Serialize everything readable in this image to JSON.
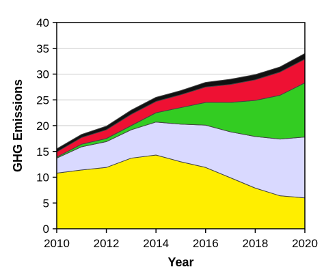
{
  "chart_data": {
    "type": "area",
    "stacked": true,
    "title": "",
    "xlabel": "Year",
    "ylabel": "GHG Emissions",
    "x": [
      2010,
      2011,
      2012,
      2013,
      2014,
      2015,
      2016,
      2017,
      2018,
      2019,
      2020
    ],
    "xlim": [
      2010,
      2020
    ],
    "ylim": [
      0,
      40
    ],
    "xticks": [
      "2010",
      "2012",
      "2014",
      "2016",
      "2018",
      "2020"
    ],
    "yticks": [
      "0",
      "5",
      "10",
      "15",
      "20",
      "25",
      "30",
      "35",
      "40"
    ],
    "grid": "horizontal",
    "legend": "none",
    "series": [
      {
        "color": "#ffee00",
        "values": [
          10.8,
          11.4,
          11.9,
          13.7,
          14.3,
          13.0,
          11.9,
          9.9,
          7.9,
          6.4,
          6.0
        ]
      },
      {
        "color": "#d9d9ff",
        "values": [
          2.9,
          4.5,
          5.0,
          5.5,
          6.4,
          7.3,
          8.2,
          8.9,
          10.0,
          11.0,
          11.8
        ]
      },
      {
        "color": "#33cc22",
        "values": [
          0.2,
          0.5,
          0.6,
          0.8,
          1.8,
          3.2,
          4.4,
          5.7,
          7.0,
          8.5,
          10.5
        ]
      },
      {
        "color": "#ee1133",
        "values": [
          1.0,
          1.3,
          1.7,
          2.2,
          2.2,
          2.5,
          3.0,
          3.5,
          4.0,
          4.5,
          4.6
        ]
      },
      {
        "color": "#111111",
        "values": [
          0.6,
          0.6,
          0.7,
          0.8,
          0.8,
          0.8,
          0.9,
          1.0,
          1.0,
          1.0,
          1.1
        ]
      }
    ]
  }
}
